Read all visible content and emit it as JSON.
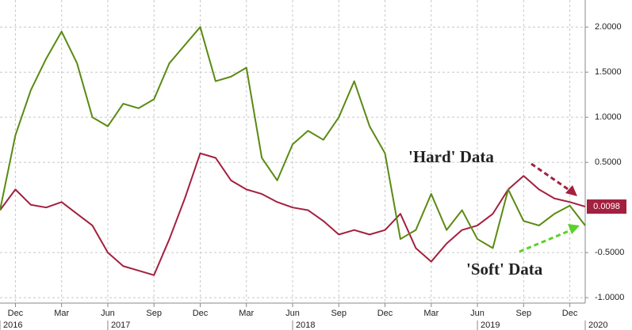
{
  "chart_data": {
    "type": "line",
    "x": [
      "2016-11",
      "2016-12",
      "2017-01",
      "2017-02",
      "2017-03",
      "2017-04",
      "2017-05",
      "2017-06",
      "2017-07",
      "2017-08",
      "2017-09",
      "2017-10",
      "2017-11",
      "2017-12",
      "2018-01",
      "2018-02",
      "2018-03",
      "2018-04",
      "2018-05",
      "2018-06",
      "2018-07",
      "2018-08",
      "2018-09",
      "2018-10",
      "2018-11",
      "2018-12",
      "2019-01",
      "2019-02",
      "2019-03",
      "2019-04",
      "2019-05",
      "2019-06",
      "2019-07",
      "2019-08",
      "2019-09",
      "2019-10",
      "2019-11",
      "2019-12",
      "2020-01"
    ],
    "series": [
      {
        "name": "'Hard' Data",
        "color": "#a3203f",
        "values": [
          -0.03,
          0.2,
          0.03,
          0,
          0.06,
          -0.07,
          -0.2,
          -0.5,
          -0.65,
          -0.7,
          -0.75,
          -0.35,
          0.1,
          0.6,
          0.55,
          0.3,
          0.2,
          0.15,
          0.06,
          0,
          -0.03,
          -0.15,
          -0.3,
          -0.25,
          -0.3,
          -0.25,
          -0.07,
          -0.45,
          -0.6,
          -0.4,
          -0.25,
          -0.2,
          -0.07,
          0.2,
          0.35,
          0.2,
          0.1,
          0.06,
          0.0098
        ]
      },
      {
        "name": "'Soft' Data",
        "color": "#5a8a12",
        "values": [
          -0.03,
          0.8,
          1.3,
          1.65,
          1.95,
          1.6,
          1.0,
          0.9,
          1.15,
          1.1,
          1.2,
          1.6,
          1.8,
          2.0,
          1.4,
          1.45,
          1.55,
          0.55,
          0.3,
          0.7,
          0.85,
          0.75,
          1.0,
          1.4,
          0.9,
          0.6,
          -0.35,
          -0.25,
          0.15,
          -0.25,
          -0.03,
          -0.35,
          -0.45,
          0.2,
          -0.15,
          -0.2,
          -0.07,
          0.02,
          -0.2
        ]
      }
    ],
    "xlim": [
      "2016-11",
      "2020-01"
    ],
    "xticks": [
      {
        "value": "2016-12",
        "label": "Dec"
      },
      {
        "value": "2017-03",
        "label": "Mar"
      },
      {
        "value": "2017-06",
        "label": "Jun"
      },
      {
        "value": "2017-09",
        "label": "Sep"
      },
      {
        "value": "2017-12",
        "label": "Dec"
      },
      {
        "value": "2018-03",
        "label": "Mar"
      },
      {
        "value": "2018-06",
        "label": "Jun"
      },
      {
        "value": "2018-09",
        "label": "Sep"
      },
      {
        "value": "2018-12",
        "label": "Dec"
      },
      {
        "value": "2019-03",
        "label": "Mar"
      },
      {
        "value": "2019-06",
        "label": "Jun"
      },
      {
        "value": "2019-09",
        "label": "Sep"
      },
      {
        "value": "2019-12",
        "label": "Dec"
      }
    ],
    "year_ticks": [
      {
        "value": "2016-11",
        "label": "2016"
      },
      {
        "value": "2017-06",
        "label": "2017"
      },
      {
        "value": "2018-06",
        "label": "2018"
      },
      {
        "value": "2019-06",
        "label": "2019"
      },
      {
        "value": "2020-01",
        "label": "2020"
      }
    ],
    "ylim": [
      -1.06,
      2.3
    ],
    "yticks": [
      {
        "value": 2,
        "label": "2.0000"
      },
      {
        "value": 1.5,
        "label": "1.5000"
      },
      {
        "value": 1,
        "label": "1.0000"
      },
      {
        "value": 0.5,
        "label": "0.5000"
      },
      {
        "value": -0.5,
        "label": "-0.5000"
      },
      {
        "value": -1,
        "label": "-1.0000"
      }
    ],
    "grid": true,
    "annotations": [
      {
        "text": "'Hard' Data",
        "color": "#a3203f"
      },
      {
        "text": "'Soft' Data",
        "color": "#5a8a12"
      }
    ]
  }
}
